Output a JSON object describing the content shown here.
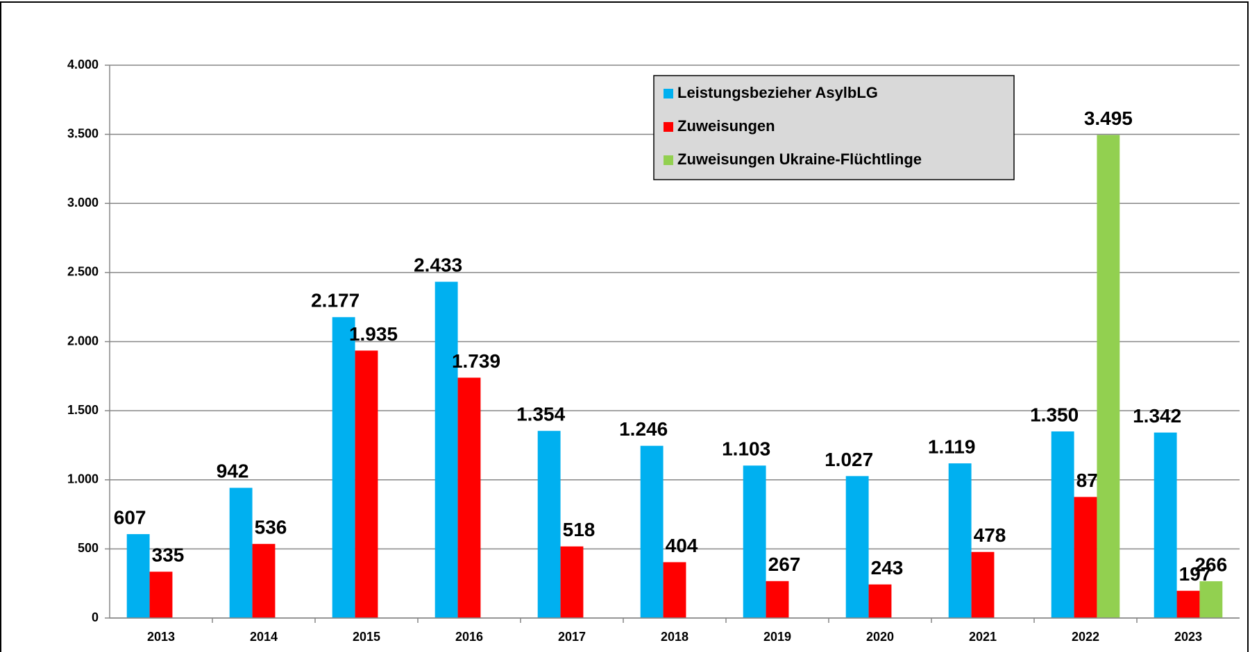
{
  "chart_data": {
    "type": "bar",
    "categories": [
      "2013",
      "2014",
      "2015",
      "2016",
      "2017",
      "2018",
      "2019",
      "2020",
      "2021",
      "2022",
      "2023"
    ],
    "series": [
      {
        "name": "Leistungsbezieher AsylbLG",
        "color": "#00b0f0",
        "values": [
          607,
          942,
          2177,
          2433,
          1354,
          1246,
          1103,
          1027,
          1119,
          1350,
          1342
        ],
        "value_labels": [
          "607",
          "942",
          "2.177",
          "2.433",
          "1.354",
          "1.246",
          "1.103",
          "1.027",
          "1.119",
          "1.350",
          "1.342"
        ]
      },
      {
        "name": "Zuweisungen",
        "color": "#ff0000",
        "values": [
          335,
          536,
          1935,
          1739,
          518,
          404,
          267,
          243,
          478,
          876,
          197
        ],
        "value_labels": [
          "335",
          "536",
          "1.935",
          "1.739",
          "518",
          "404",
          "267",
          "243",
          "478",
          "876",
          "197"
        ]
      },
      {
        "name": "Zuweisungen Ukraine-Flüchtlinge",
        "color": "#92d050",
        "values": [
          null,
          null,
          null,
          null,
          null,
          null,
          null,
          null,
          null,
          3495,
          266
        ],
        "value_labels": [
          null,
          null,
          null,
          null,
          null,
          null,
          null,
          null,
          null,
          "3.495",
          "266"
        ]
      }
    ],
    "ylim": [
      0,
      4000
    ],
    "yticks": [
      0,
      500,
      {
        "value": 1000,
        "label": "1.000"
      },
      {
        "value": 1500,
        "label": "1.500"
      },
      {
        "value": 2000,
        "label": "2.000"
      },
      {
        "value": 2500,
        "label": "2.500"
      },
      {
        "value": 3000,
        "label": "3.000"
      },
      {
        "value": 3500,
        "label": "3.500"
      },
      {
        "value": 4000,
        "label": "4.000"
      }
    ],
    "grid": true,
    "legend": "upper right"
  }
}
